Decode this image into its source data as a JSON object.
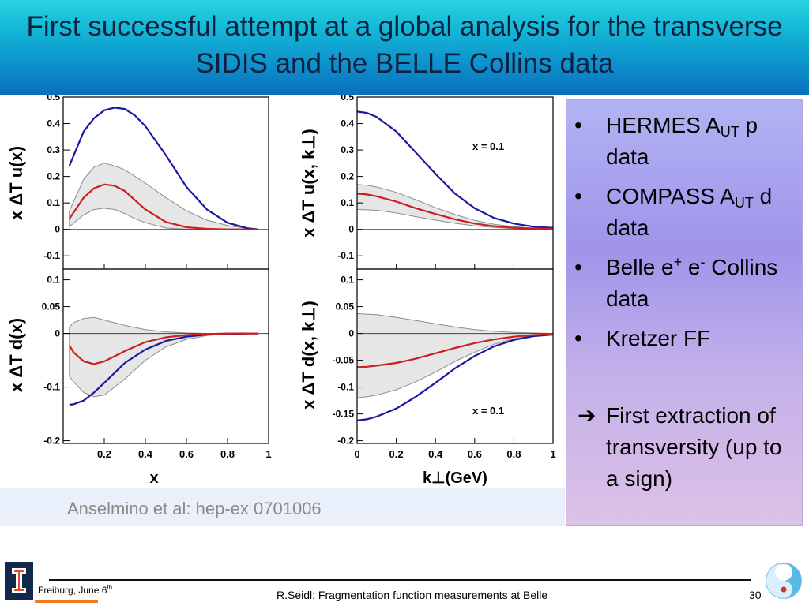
{
  "title": "First successful attempt at a global analysis for the transverse SIDIS and the BELLE Collins data",
  "chart_data": [
    {
      "type": "line",
      "panel": "top-left",
      "ylabel": "x ΔT u(x)",
      "xlabel": "",
      "xlim": [
        0,
        1
      ],
      "ylim": [
        -0.15,
        0.5
      ],
      "yticks": [
        -0.1,
        0,
        0.1,
        0.2,
        0.3,
        0.4,
        0.5
      ],
      "ytick_labels": [
        "-0.1",
        "0",
        "0.1",
        "0.2",
        "0.3",
        "0.4",
        "0.5"
      ],
      "xticks": [
        0.2,
        0.4,
        0.6,
        0.8,
        1
      ],
      "xtick_labels": [],
      "annotation": "",
      "series": [
        {
          "color": "#1a1aa0",
          "x": [
            0.03,
            0.1,
            0.15,
            0.2,
            0.25,
            0.3,
            0.35,
            0.4,
            0.5,
            0.6,
            0.7,
            0.8,
            0.9,
            0.95
          ],
          "y": [
            0.24,
            0.37,
            0.42,
            0.45,
            0.46,
            0.455,
            0.43,
            0.39,
            0.28,
            0.16,
            0.075,
            0.025,
            0.004,
            0.0
          ]
        },
        {
          "color": "#cc2020",
          "x": [
            0.03,
            0.1,
            0.15,
            0.2,
            0.25,
            0.3,
            0.35,
            0.4,
            0.5,
            0.6,
            0.7,
            0.8,
            0.9,
            0.95
          ],
          "y": [
            0.04,
            0.12,
            0.155,
            0.17,
            0.165,
            0.145,
            0.11,
            0.075,
            0.028,
            0.008,
            0.002,
            0.0,
            0.0,
            0.0
          ]
        }
      ],
      "band": {
        "x": [
          0.03,
          0.1,
          0.15,
          0.2,
          0.25,
          0.3,
          0.35,
          0.4,
          0.5,
          0.6,
          0.7,
          0.8,
          0.9,
          0.95
        ],
        "upper": [
          0.07,
          0.19,
          0.235,
          0.25,
          0.24,
          0.225,
          0.2,
          0.175,
          0.12,
          0.07,
          0.035,
          0.015,
          0.003,
          0.0
        ],
        "lower": [
          0.01,
          0.055,
          0.075,
          0.08,
          0.075,
          0.06,
          0.04,
          0.025,
          0.005,
          0.001,
          0.0,
          0.0,
          0.0,
          0.0
        ]
      }
    },
    {
      "type": "line",
      "panel": "top-right",
      "ylabel": "x ΔT u(x, k⊥)",
      "xlabel": "",
      "xlim": [
        0,
        1
      ],
      "ylim": [
        -0.15,
        0.5
      ],
      "yticks": [
        -0.1,
        0,
        0.1,
        0.2,
        0.3,
        0.4,
        0.5
      ],
      "ytick_labels": [
        "-0.1",
        "0",
        "0.1",
        "0.2",
        "0.3",
        "0.4",
        "0.5"
      ],
      "xticks": [
        0,
        0.2,
        0.4,
        0.6,
        0.8,
        1
      ],
      "xtick_labels": [],
      "annotation": "x = 0.1",
      "series": [
        {
          "color": "#1a1aa0",
          "x": [
            0,
            0.05,
            0.1,
            0.2,
            0.3,
            0.4,
            0.5,
            0.6,
            0.7,
            0.8,
            0.9,
            1.0
          ],
          "y": [
            0.445,
            0.44,
            0.425,
            0.37,
            0.29,
            0.21,
            0.135,
            0.08,
            0.043,
            0.022,
            0.01,
            0.006
          ]
        },
        {
          "color": "#cc2020",
          "x": [
            0,
            0.05,
            0.1,
            0.2,
            0.3,
            0.4,
            0.5,
            0.6,
            0.7,
            0.8,
            0.9,
            1.0
          ],
          "y": [
            0.135,
            0.132,
            0.125,
            0.105,
            0.08,
            0.058,
            0.038,
            0.022,
            0.012,
            0.006,
            0.003,
            0.002
          ]
        }
      ],
      "band": {
        "x": [
          0,
          0.05,
          0.1,
          0.2,
          0.3,
          0.4,
          0.5,
          0.6,
          0.7,
          0.8,
          0.9,
          1.0
        ],
        "upper": [
          0.17,
          0.167,
          0.16,
          0.14,
          0.112,
          0.082,
          0.056,
          0.034,
          0.019,
          0.01,
          0.005,
          0.003
        ],
        "lower": [
          0.075,
          0.074,
          0.072,
          0.062,
          0.048,
          0.035,
          0.023,
          0.013,
          0.007,
          0.003,
          0.001,
          0.001
        ]
      }
    },
    {
      "type": "line",
      "panel": "bottom-left",
      "ylabel": "x ΔT d(x)",
      "xlabel": "x",
      "xlim": [
        0,
        1
      ],
      "ylim": [
        -0.205,
        0.12
      ],
      "yticks": [
        -0.2,
        -0.1,
        0,
        0.05,
        0.1
      ],
      "ytick_labels": [
        "-0.2",
        "-0.1",
        "0",
        "0.05",
        "0.1"
      ],
      "xticks": [
        0.2,
        0.4,
        0.6,
        0.8,
        1
      ],
      "xtick_labels": [
        "0.2",
        "0.4",
        "0.6",
        "0.8",
        "1"
      ],
      "annotation": "",
      "series": [
        {
          "color": "#1a1aa0",
          "x": [
            0.03,
            0.05,
            0.1,
            0.15,
            0.2,
            0.3,
            0.4,
            0.5,
            0.6,
            0.7,
            0.8,
            0.9,
            0.95
          ],
          "y": [
            -0.133,
            -0.132,
            -0.125,
            -0.11,
            -0.092,
            -0.055,
            -0.03,
            -0.014,
            -0.006,
            -0.002,
            -0.001,
            0.0,
            0.0
          ]
        },
        {
          "color": "#cc2020",
          "x": [
            0.03,
            0.05,
            0.1,
            0.15,
            0.2,
            0.3,
            0.4,
            0.5,
            0.6,
            0.7,
            0.8,
            0.9,
            0.95
          ],
          "y": [
            -0.022,
            -0.035,
            -0.052,
            -0.057,
            -0.052,
            -0.033,
            -0.016,
            -0.007,
            -0.003,
            -0.001,
            0.0,
            0.0,
            0.0
          ]
        }
      ],
      "band": {
        "x": [
          0.03,
          0.05,
          0.1,
          0.15,
          0.2,
          0.3,
          0.4,
          0.5,
          0.6,
          0.7,
          0.8,
          0.9,
          0.95
        ],
        "upper": [
          0.012,
          0.02,
          0.028,
          0.03,
          0.025,
          0.015,
          0.007,
          0.003,
          0.001,
          0.0,
          0.0,
          0.0,
          0.0
        ],
        "lower": [
          -0.08,
          -0.09,
          -0.11,
          -0.118,
          -0.115,
          -0.085,
          -0.05,
          -0.025,
          -0.011,
          -0.004,
          -0.001,
          0.0,
          0.0
        ]
      }
    },
    {
      "type": "line",
      "panel": "bottom-right",
      "ylabel": "x ΔT d(x, k⊥)",
      "xlabel": "k⊥(GeV)",
      "xlim": [
        0,
        1
      ],
      "ylim": [
        -0.205,
        0.12
      ],
      "yticks": [
        -0.2,
        -0.15,
        -0.1,
        -0.05,
        0,
        0.05,
        0.1
      ],
      "ytick_labels": [
        "-0.2",
        "-0.15",
        "-0.1",
        "-0.05",
        "0",
        "0.05",
        "0.1"
      ],
      "xticks": [
        0,
        0.2,
        0.4,
        0.6,
        0.8,
        1
      ],
      "xtick_labels": [
        "0",
        "0.2",
        "0.4",
        "0.6",
        "0.8",
        "1"
      ],
      "annotation": "x = 0.1",
      "series": [
        {
          "color": "#1a1aa0",
          "x": [
            0,
            0.05,
            0.1,
            0.2,
            0.3,
            0.4,
            0.5,
            0.6,
            0.7,
            0.8,
            0.9,
            1.0
          ],
          "y": [
            -0.162,
            -0.16,
            -0.155,
            -0.14,
            -0.118,
            -0.092,
            -0.065,
            -0.042,
            -0.024,
            -0.012,
            -0.005,
            -0.002
          ]
        },
        {
          "color": "#cc2020",
          "x": [
            0,
            0.05,
            0.1,
            0.2,
            0.3,
            0.4,
            0.5,
            0.6,
            0.7,
            0.8,
            0.9,
            1.0
          ],
          "y": [
            -0.063,
            -0.062,
            -0.06,
            -0.055,
            -0.047,
            -0.037,
            -0.027,
            -0.018,
            -0.011,
            -0.006,
            -0.003,
            -0.001
          ]
        }
      ],
      "band": {
        "x": [
          0,
          0.05,
          0.1,
          0.2,
          0.3,
          0.4,
          0.5,
          0.6,
          0.7,
          0.8,
          0.9,
          1.0
        ],
        "upper": [
          0.037,
          0.036,
          0.035,
          0.03,
          0.024,
          0.018,
          0.012,
          0.007,
          0.004,
          0.002,
          0.001,
          0.0
        ],
        "lower": [
          -0.12,
          -0.118,
          -0.115,
          -0.105,
          -0.09,
          -0.072,
          -0.052,
          -0.035,
          -0.02,
          -0.01,
          -0.004,
          -0.002
        ]
      }
    }
  ],
  "caption": "Anselmino et al: hep-ex 0701006",
  "bullets": [
    {
      "pre": "HERMES A",
      "sub": "UT",
      "post": " p data"
    },
    {
      "pre": "COMPASS A",
      "sub": "UT",
      "post": " d data"
    },
    {
      "pre": "Belle e",
      "sup1": "+",
      "mid": " e",
      "sup2": "-",
      "post": " Collins data"
    },
    {
      "text": "Kretzer FF"
    }
  ],
  "bullet_glyph": "•",
  "arrow_glyph": "➔",
  "conclusion": "First extraction of transversity (up to a sign)",
  "footer": {
    "location": "Freiburg, June 6",
    "location_sup": "th",
    "center": "R.Seidl: Fragmentation function measurements at Belle",
    "page": "30"
  },
  "colors": {
    "title_bar": "#14b8d6",
    "band": "#e6e6e6",
    "blue_curve": "#1a1aa0",
    "red_curve": "#cc2020"
  },
  "icons": [
    "uiuc-logo-icon",
    "belle-logo-icon"
  ]
}
